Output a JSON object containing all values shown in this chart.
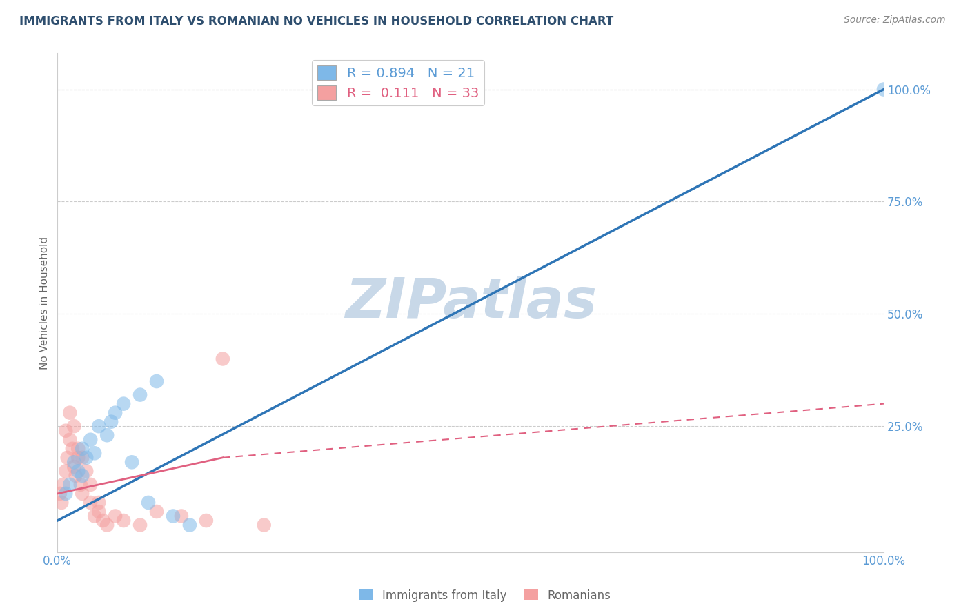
{
  "title": "IMMIGRANTS FROM ITALY VS ROMANIAN NO VEHICLES IN HOUSEHOLD CORRELATION CHART",
  "source_text": "Source: ZipAtlas.com",
  "ylabel": "No Vehicles in Household",
  "xlim": [
    0.0,
    100.0
  ],
  "ylim": [
    -3.0,
    108.0
  ],
  "x_tick_labels": [
    "0.0%",
    "100.0%"
  ],
  "x_tick_positions": [
    0.0,
    100.0
  ],
  "y_tick_labels": [
    "25.0%",
    "50.0%",
    "75.0%",
    "100.0%"
  ],
  "y_tick_positions": [
    25.0,
    50.0,
    75.0,
    100.0
  ],
  "blue_color": "#7EB8E8",
  "pink_color": "#F4A0A0",
  "blue_line_color": "#2E75B6",
  "pink_line_color": "#E06080",
  "tick_label_color": "#5B9BD5",
  "title_color": "#2F4F6F",
  "axis_label_color": "#666666",
  "watermark_text": "ZIPatlas",
  "watermark_color": "#C8D8E8",
  "blue_scatter_x": [
    1.0,
    1.5,
    2.0,
    2.5,
    3.0,
    3.5,
    4.0,
    5.0,
    6.0,
    7.0,
    8.0,
    10.0,
    12.0,
    3.0,
    4.5,
    6.5,
    9.0,
    11.0,
    14.0,
    16.0,
    100.0
  ],
  "blue_scatter_y": [
    10.0,
    12.0,
    17.0,
    15.0,
    20.0,
    18.0,
    22.0,
    25.0,
    23.0,
    28.0,
    30.0,
    32.0,
    35.0,
    14.0,
    19.0,
    26.0,
    17.0,
    8.0,
    5.0,
    3.0,
    100.0
  ],
  "pink_scatter_x": [
    0.3,
    0.5,
    0.7,
    1.0,
    1.2,
    1.5,
    1.8,
    2.0,
    2.2,
    2.5,
    2.8,
    3.0,
    3.5,
    4.0,
    4.5,
    5.0,
    5.5,
    6.0,
    7.0,
    8.0,
    10.0,
    12.0,
    15.0,
    18.0,
    20.0,
    25.0,
    1.0,
    1.5,
    2.0,
    2.5,
    3.0,
    4.0,
    5.0
  ],
  "pink_scatter_y": [
    10.0,
    8.0,
    12.0,
    15.0,
    18.0,
    22.0,
    20.0,
    16.0,
    14.0,
    18.0,
    12.0,
    10.0,
    15.0,
    8.0,
    5.0,
    6.0,
    4.0,
    3.0,
    5.0,
    4.0,
    3.0,
    6.0,
    5.0,
    4.0,
    40.0,
    3.0,
    24.0,
    28.0,
    25.0,
    20.0,
    18.0,
    12.0,
    8.0
  ],
  "blue_line_x0": 0.0,
  "blue_line_y0": 4.0,
  "blue_line_x1": 100.0,
  "blue_line_y1": 100.0,
  "pink_solid_x0": 0.0,
  "pink_solid_y0": 10.0,
  "pink_solid_x1": 20.0,
  "pink_solid_y1": 18.0,
  "pink_dash_x0": 20.0,
  "pink_dash_y0": 18.0,
  "pink_dash_x1": 100.0,
  "pink_dash_y1": 30.0,
  "legend_R_blue": "R = 0.894",
  "legend_N_blue": "N = 21",
  "legend_R_pink": "R =  0.111",
  "legend_N_pink": "N = 33"
}
